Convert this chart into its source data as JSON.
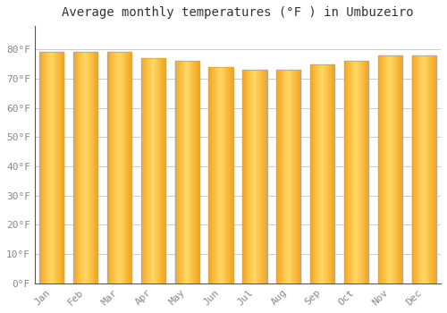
{
  "title": "Average monthly temperatures (°F ) in Umbuzeiro",
  "months": [
    "Jan",
    "Feb",
    "Mar",
    "Apr",
    "May",
    "Jun",
    "Jul",
    "Aug",
    "Sep",
    "Oct",
    "Nov",
    "Dec"
  ],
  "values": [
    79,
    79,
    79,
    77,
    76,
    74,
    73,
    73,
    75,
    76,
    78,
    78
  ],
  "bar_color_center": "#FFD966",
  "bar_color_edge": "#F5A623",
  "bar_border_color": "#AAAAAA",
  "background_color": "#FFFFFF",
  "plot_bg_color": "#FFFFFF",
  "grid_color": "#CCCCCC",
  "ylim": [
    0,
    88
  ],
  "yticks": [
    0,
    10,
    20,
    30,
    40,
    50,
    60,
    70,
    80
  ],
  "ytick_labels": [
    "0°F",
    "10°F",
    "20°F",
    "30°F",
    "40°F",
    "50°F",
    "60°F",
    "70°F",
    "80°F"
  ],
  "title_fontsize": 10,
  "tick_fontsize": 8,
  "tick_color": "#888888",
  "title_color": "#333333",
  "bar_width": 0.72,
  "n_gradient_strips": 30
}
